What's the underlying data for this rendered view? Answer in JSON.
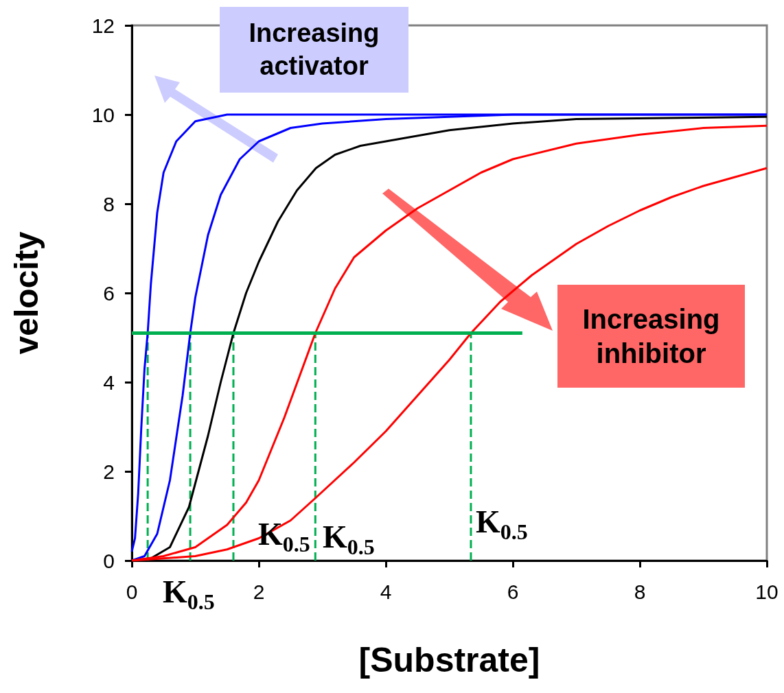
{
  "chart_data": {
    "type": "line",
    "xlabel": "[Substrate]",
    "ylabel": "velocity",
    "xlim": [
      0,
      10
    ],
    "xticks": [
      0,
      2,
      4,
      6,
      8,
      10
    ],
    "ylim": [
      0,
      12
    ],
    "yticks": [
      0,
      2,
      4,
      6,
      8,
      10,
      12
    ],
    "grid": false,
    "marker": "none",
    "annotations": [
      "Increasing activator",
      "Increasing inhibitor",
      "K$_{0.5}$",
      "K$_{0.5}$",
      "K$_{0.5}$",
      "K$_{0.5}$"
    ],
    "series": [
      {
        "color": "#0000ff",
        "x": [
          0,
          0.05,
          0.1,
          0.15,
          0.2,
          0.25,
          0.3,
          0.4,
          0.5,
          0.7,
          1,
          1.5,
          2,
          10
        ],
        "values": [
          0.2,
          0.5,
          1.5,
          3,
          4.3,
          5.1,
          6.2,
          7.8,
          8.7,
          9.4,
          9.85,
          10,
          10,
          10
        ]
      },
      {
        "color": "#0000ff",
        "x": [
          0,
          0.2,
          0.4,
          0.6,
          0.8,
          0.92,
          1,
          1.2,
          1.4,
          1.7,
          2,
          2.5,
          3,
          4,
          6,
          10
        ],
        "values": [
          0,
          0.1,
          0.6,
          1.8,
          3.7,
          5.1,
          5.9,
          7.3,
          8.2,
          9,
          9.4,
          9.7,
          9.8,
          9.9,
          10,
          10
        ]
      },
      {
        "color": "#000000",
        "x": [
          0,
          0.3,
          0.6,
          0.9,
          1.2,
          1.4,
          1.6,
          1.8,
          2,
          2.3,
          2.6,
          2.9,
          3.2,
          3.6,
          4,
          5,
          6,
          7,
          10
        ],
        "values": [
          0,
          0.05,
          0.3,
          1.2,
          2.8,
          4,
          5.1,
          6,
          6.7,
          7.6,
          8.3,
          8.8,
          9.1,
          9.3,
          9.4,
          9.65,
          9.8,
          9.9,
          9.95
        ]
      },
      {
        "color": "#ff0000",
        "x": [
          0,
          0.5,
          1,
          1.5,
          1.8,
          2,
          2.4,
          2.89,
          3.2,
          3.5,
          4,
          4.5,
          5,
          5.5,
          6,
          7,
          8,
          9,
          10
        ],
        "values": [
          0,
          0.1,
          0.3,
          0.8,
          1.3,
          1.8,
          3.2,
          5.1,
          6.1,
          6.8,
          7.4,
          7.9,
          8.3,
          8.7,
          9,
          9.35,
          9.55,
          9.7,
          9.75
        ]
      },
      {
        "color": "#ff0000",
        "x": [
          0,
          1,
          1.5,
          2,
          2.5,
          2.89,
          3.5,
          4,
          4.5,
          5,
          5.34,
          5.8,
          6.3,
          7,
          7.5,
          8,
          8.5,
          9,
          9.5,
          10
        ],
        "values": [
          0,
          0.1,
          0.25,
          0.5,
          0.9,
          1.4,
          2.2,
          2.9,
          3.7,
          4.5,
          5.1,
          5.8,
          6.4,
          7.1,
          7.5,
          7.85,
          8.15,
          8.4,
          8.6,
          8.8
        ]
      },
      {
        "color": "#00b050",
        "x": [
          0,
          6.15
        ],
        "values": [
          5.1,
          5.1
        ]
      },
      {
        "color": "#00b050",
        "line_style": "dashed",
        "x": [
          0.25,
          0.25
        ],
        "values": [
          0,
          5.1
        ]
      },
      {
        "color": "#00b050",
        "line_style": "dashed",
        "x": [
          0.92,
          0.92
        ],
        "values": [
          0,
          5.1
        ]
      },
      {
        "color": "#00b050",
        "line_style": "dashed",
        "x": [
          1.6,
          1.6
        ],
        "values": [
          0,
          5.1
        ]
      },
      {
        "color": "#00b050",
        "line_style": "dashed",
        "x": [
          2.89,
          2.89
        ],
        "values": [
          0,
          5.1
        ]
      },
      {
        "color": "#00b050",
        "line_style": "dashed",
        "x": [
          5.34,
          5.34
        ],
        "values": [
          0,
          5.1
        ]
      }
    ]
  }
}
